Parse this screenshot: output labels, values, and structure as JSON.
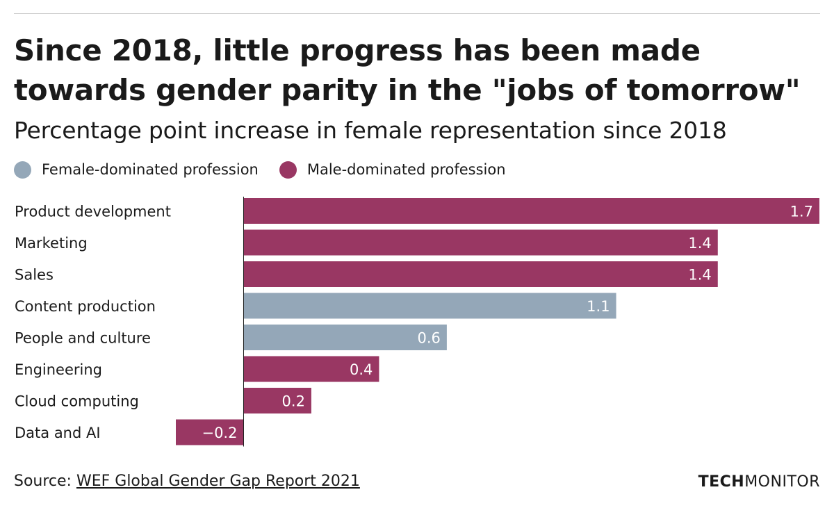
{
  "header": {
    "title": "Since 2018, little progress has been made towards gender parity in the \"jobs of tomorrow\"",
    "subtitle": "Percentage point increase in female representation since 2018"
  },
  "legend": [
    {
      "label": "Female-dominated profession",
      "color": "#94a7b8"
    },
    {
      "label": "Male-dominated profession",
      "color": "#993763"
    }
  ],
  "chart_data": {
    "type": "bar",
    "orientation": "horizontal",
    "categories": [
      "Product development",
      "Marketing",
      "Sales",
      "Content production",
      "People and culture",
      "Engineering",
      "Cloud computing",
      "Data and AI"
    ],
    "values": [
      1.7,
      1.4,
      1.4,
      1.1,
      0.6,
      0.4,
      0.2,
      -0.2
    ],
    "value_labels": [
      "1.7",
      "1.4",
      "1.4",
      "1.1",
      "0.6",
      "0.4",
      "0.2",
      "−0.2"
    ],
    "groups": [
      "Male-dominated profession",
      "Male-dominated profession",
      "Male-dominated profession",
      "Female-dominated profession",
      "Female-dominated profession",
      "Male-dominated profession",
      "Male-dominated profession",
      "Male-dominated profession"
    ],
    "xlim": [
      -0.2,
      1.7
    ],
    "title": "Since 2018, little progress has been made towards gender parity in the \"jobs of tomorrow\"",
    "subtitle": "Percentage point increase in female representation since 2018",
    "grid": false
  },
  "footer": {
    "source_prefix": "Source: ",
    "source_link": "WEF Global Gender Gap Report 2021",
    "brand_bold": "TECH",
    "brand_regular": "MONITOR"
  }
}
